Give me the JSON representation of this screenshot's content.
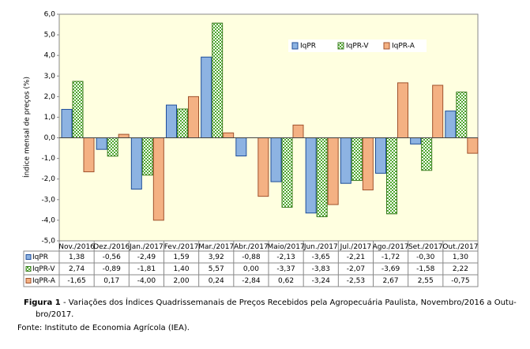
{
  "chart_data": {
    "type": "bar",
    "y_label": "Índice mensal de preços (%)",
    "categories": [
      "Nov./2016",
      "Dez./2016",
      "Jan./2017",
      "Fev./2017",
      "Mar./2017",
      "Abr./2017",
      "Maio/2017",
      "Jun./2017",
      "Jul./2017",
      "Ago./2017",
      "Set./2017",
      "Out./2017"
    ],
    "series": [
      {
        "name": "IqPR",
        "color": "#8db3e2",
        "values": [
          1.38,
          -0.56,
          -2.49,
          1.59,
          3.92,
          -0.88,
          -2.13,
          -3.65,
          -2.21,
          -1.72,
          -0.3,
          1.3
        ],
        "value_labels": [
          "1,38",
          "-0,56",
          "-2,49",
          "1,59",
          "3,92",
          "-0,88",
          "-2,13",
          "-3,65",
          "-2,21",
          "-1,72",
          "-0,30",
          "1,30"
        ]
      },
      {
        "name": "IqPR-V",
        "color": "#4ea72e",
        "values": [
          2.74,
          -0.89,
          -1.81,
          1.4,
          5.57,
          0.0,
          -3.37,
          -3.83,
          -2.07,
          -3.69,
          -1.58,
          2.22
        ],
        "value_labels": [
          "2,74",
          "-0,89",
          "-1,81",
          "1,40",
          "5,57",
          "0,00",
          "-3,37",
          "-3,83",
          "-2,07",
          "-3,69",
          "-1,58",
          "2,22"
        ]
      },
      {
        "name": "IqPR-A",
        "color": "#f4b183",
        "values": [
          -1.65,
          0.17,
          -4.0,
          2.0,
          0.24,
          -2.84,
          0.62,
          -3.24,
          -2.53,
          2.67,
          2.55,
          -0.75
        ],
        "value_labels": [
          "-1,65",
          "0,17",
          "-4,00",
          "2,00",
          "0,24",
          "-2,84",
          "0,62",
          "-3,24",
          "-2,53",
          "2,67",
          "2,55",
          "-0,75"
        ]
      }
    ],
    "ylim": [
      -5,
      6
    ],
    "yticks": [
      {
        "value": -5,
        "label": "-5,0"
      },
      {
        "value": -4,
        "label": "-4,0"
      },
      {
        "value": -3,
        "label": "-3,0"
      },
      {
        "value": -2,
        "label": "-2,0"
      },
      {
        "value": -1,
        "label": "-1,0"
      },
      {
        "value": 0,
        "label": "0,0"
      },
      {
        "value": 1,
        "label": "1,0"
      },
      {
        "value": 2,
        "label": "2,0"
      },
      {
        "value": 3,
        "label": "3,0"
      },
      {
        "value": 4,
        "label": "4,0"
      },
      {
        "value": 5,
        "label": "5,0"
      },
      {
        "value": 6,
        "label": "6,0"
      }
    ],
    "grid": false,
    "legend": "top-right"
  },
  "caption": {
    "label": "Figura 1",
    "lines": [
      "- Variações dos Índices Quadrissemanais de Preços Recebidos pela Agropecuária Paulista, Novembro/2016 a Outu-",
      "bro/2017."
    ]
  },
  "source": "Fonte: Instituto de Economia Agrícola (IEA)."
}
